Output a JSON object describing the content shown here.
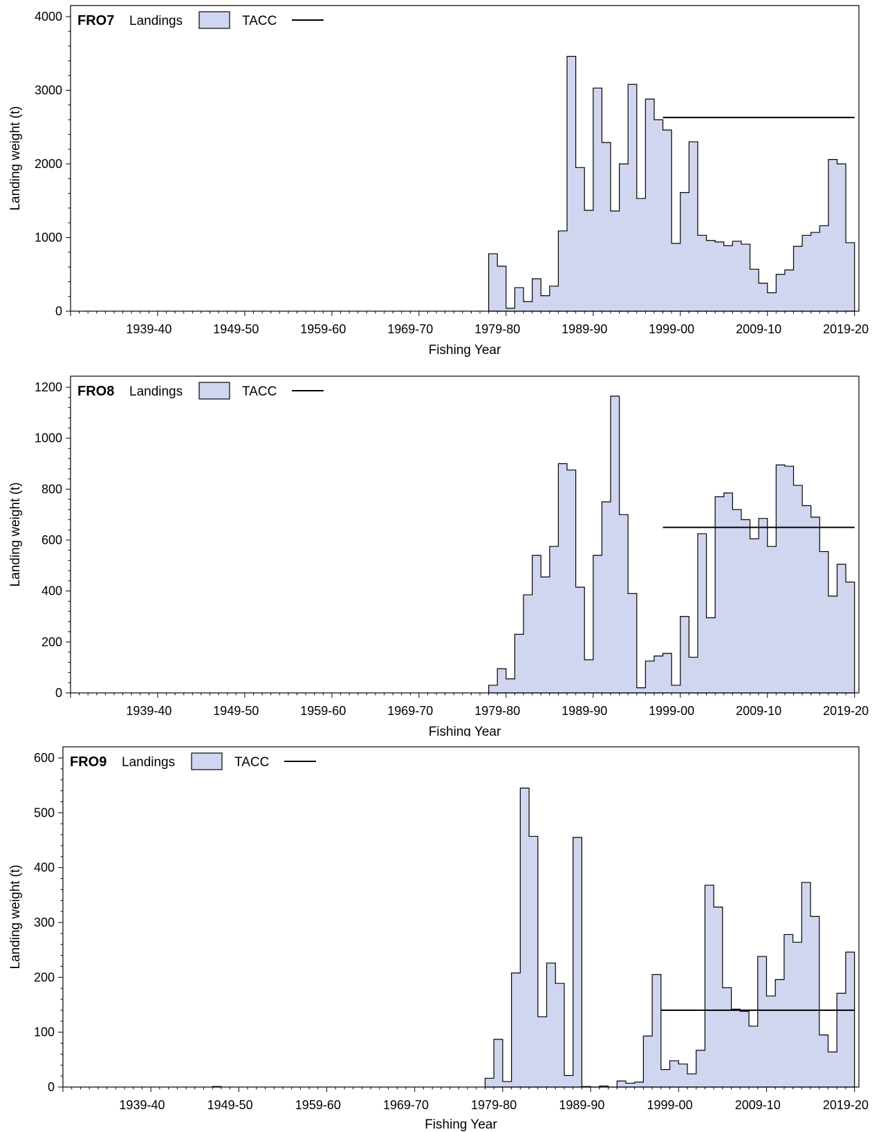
{
  "legend": {
    "landings_label": "Landings",
    "tacc_label": "TACC"
  },
  "colors": {
    "landings_fill": "#d0d6f0",
    "outline": "#000000",
    "tacc_line": "#000000"
  },
  "chart_data": [
    {
      "type": "area",
      "title": "FRO7",
      "xlabel": "Fishing Year",
      "ylabel": "Landing weight (t)",
      "x_tick_labels": [
        "1939-40",
        "1949-50",
        "1959-60",
        "1969-70",
        "1979-80",
        "1989-90",
        "1999-00",
        "2009-10",
        "2019-20"
      ],
      "y_ticks": [
        "0",
        "1000",
        "2000",
        "3000",
        "4000"
      ],
      "ylim": [
        0,
        4000
      ],
      "grid": false,
      "legend_position": "top-left",
      "series": [
        {
          "name": "Landings",
          "style": "step",
          "x": [
            "1978-79",
            "1979-80",
            "1980-81",
            "1981-82",
            "1982-83",
            "1983-84",
            "1984-85",
            "1985-86",
            "1986-87",
            "1987-88",
            "1988-89",
            "1989-90",
            "1990-91",
            "1991-92",
            "1992-93",
            "1993-94",
            "1994-95",
            "1995-96",
            "1996-97",
            "1997-98",
            "1998-99",
            "1999-00",
            "2000-01",
            "2001-02",
            "2002-03",
            "2003-04",
            "2004-05",
            "2005-06",
            "2006-07",
            "2007-08",
            "2008-09",
            "2009-10",
            "2010-11",
            "2011-12",
            "2012-13",
            "2013-14",
            "2014-15",
            "2015-16",
            "2016-17",
            "2017-18",
            "2018-19",
            "2019-20"
          ],
          "values": [
            780,
            610,
            40,
            320,
            130,
            440,
            210,
            340,
            1090,
            3460,
            1950,
            1370,
            3030,
            2290,
            1360,
            2000,
            3080,
            1530,
            2880,
            2600,
            2460,
            920,
            1610,
            2300,
            1030,
            960,
            940,
            890,
            950,
            910,
            570,
            380,
            250,
            500,
            560,
            880,
            1030,
            1070,
            1160,
            2060,
            2000,
            930
          ]
        },
        {
          "name": "TACC",
          "style": "line",
          "x": [
            "1998-99",
            "2019-20"
          ],
          "values": [
            2630,
            2630
          ]
        }
      ]
    },
    {
      "type": "area",
      "title": "FRO8",
      "xlabel": "Fishing Year",
      "ylabel": "Landing weight (t)",
      "x_tick_labels": [
        "1939-40",
        "1949-50",
        "1959-60",
        "1969-70",
        "1979-80",
        "1989-90",
        "1999-00",
        "2009-10",
        "2019-20"
      ],
      "y_ticks": [
        "0",
        "200",
        "400",
        "600",
        "800",
        "1000",
        "1200"
      ],
      "ylim": [
        0,
        1200
      ],
      "grid": false,
      "legend_position": "top-left",
      "series": [
        {
          "name": "Landings",
          "style": "step",
          "x": [
            "1978-79",
            "1979-80",
            "1980-81",
            "1981-82",
            "1982-83",
            "1983-84",
            "1984-85",
            "1985-86",
            "1986-87",
            "1987-88",
            "1988-89",
            "1989-90",
            "1990-91",
            "1991-92",
            "1992-93",
            "1993-94",
            "1994-95",
            "1995-96",
            "1996-97",
            "1997-98",
            "1998-99",
            "1999-00",
            "2000-01",
            "2001-02",
            "2002-03",
            "2003-04",
            "2004-05",
            "2005-06",
            "2006-07",
            "2007-08",
            "2008-09",
            "2009-10",
            "2010-11",
            "2011-12",
            "2012-13",
            "2013-14",
            "2014-15",
            "2015-16",
            "2016-17",
            "2017-18",
            "2018-19",
            "2019-20"
          ],
          "values": [
            30,
            95,
            55,
            230,
            385,
            540,
            455,
            575,
            900,
            875,
            415,
            130,
            540,
            750,
            1165,
            700,
            390,
            20,
            125,
            145,
            155,
            30,
            300,
            140,
            625,
            295,
            770,
            785,
            720,
            680,
            605,
            685,
            575,
            895,
            890,
            815,
            735,
            690,
            555,
            380,
            505,
            435
          ]
        },
        {
          "name": "TACC",
          "style": "line",
          "x": [
            "1998-99",
            "2019-20"
          ],
          "values": [
            650,
            650
          ]
        }
      ]
    },
    {
      "type": "area",
      "title": "FRO9",
      "xlabel": "Fishing Year",
      "ylabel": "Landing weight (t)",
      "x_tick_labels": [
        "1939-40",
        "1949-50",
        "1959-60",
        "1969-70",
        "1979-80",
        "1989-90",
        "1999-00",
        "2009-10",
        "2019-20"
      ],
      "y_ticks": [
        "0",
        "100",
        "200",
        "300",
        "400",
        "500",
        "600"
      ],
      "ylim": [
        0,
        600
      ],
      "grid": false,
      "legend_position": "top-left",
      "series": [
        {
          "name": "Landings",
          "style": "step",
          "x": [
            "1947-48",
            "1978-79",
            "1979-80",
            "1980-81",
            "1981-82",
            "1982-83",
            "1983-84",
            "1984-85",
            "1985-86",
            "1986-87",
            "1987-88",
            "1988-89",
            "1989-90",
            "1990-91",
            "1991-92",
            "1992-93",
            "1993-94",
            "1994-95",
            "1995-96",
            "1996-97",
            "1997-98",
            "1998-99",
            "1999-00",
            "2000-01",
            "2001-02",
            "2002-03",
            "2003-04",
            "2004-05",
            "2005-06",
            "2006-07",
            "2007-08",
            "2008-09",
            "2009-10",
            "2010-11",
            "2011-12",
            "2012-13",
            "2013-14",
            "2014-15",
            "2015-16",
            "2016-17",
            "2017-18",
            "2018-19",
            "2019-20"
          ],
          "values": [
            1,
            16,
            87,
            10,
            208,
            545,
            457,
            128,
            226,
            189,
            21,
            455,
            1,
            0,
            2,
            0,
            11,
            7,
            9,
            93,
            205,
            32,
            48,
            42,
            24,
            67,
            368,
            328,
            181,
            142,
            138,
            111,
            238,
            166,
            196,
            278,
            264,
            373,
            311,
            95,
            64,
            171,
            246
          ]
        },
        {
          "name": "TACC",
          "style": "line",
          "x": [
            "1998-99",
            "2019-20"
          ],
          "values": [
            140,
            140
          ]
        }
      ]
    }
  ]
}
